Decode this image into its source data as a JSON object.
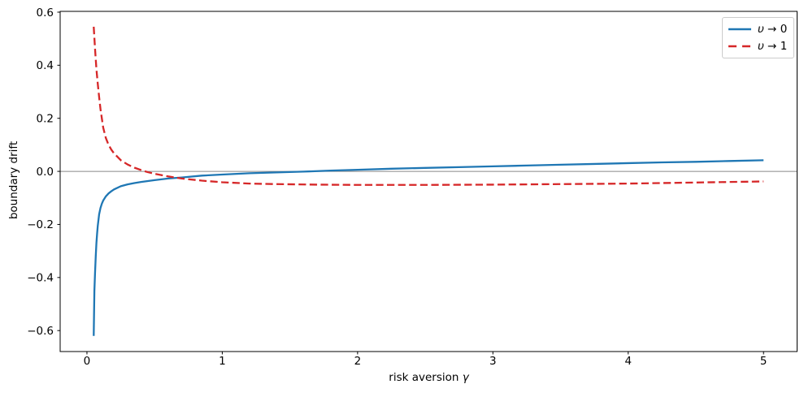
{
  "chart_data": {
    "type": "line",
    "title": "",
    "xlabel": "risk aversion γ",
    "ylabel": "boundary drift",
    "xlim": [
      -0.198,
      5.248
    ],
    "ylim": [
      -0.679,
      0.603
    ],
    "grid": false,
    "legend_position": "upper right",
    "background": "#ffffff",
    "spine_color": "#000000",
    "zero_line": {
      "y": 0.0,
      "color": "#888888"
    },
    "xticks": {
      "values": [
        0,
        1,
        2,
        3,
        4,
        5
      ],
      "labels": [
        "0",
        "1",
        "2",
        "3",
        "4",
        "5"
      ]
    },
    "yticks": {
      "values": [
        0.6,
        0.4,
        0.2,
        0.0,
        -0.2,
        -0.4,
        -0.6
      ],
      "labels": [
        "0.6",
        "0.4",
        "0.2",
        "0.0",
        "−0.2",
        "−0.4",
        "−0.6"
      ]
    },
    "series": [
      {
        "name": "υ → 0",
        "style": "solid",
        "color": "#1f77b4",
        "linewidth": 2.3,
        "x": [
          0.05,
          0.055,
          0.06,
          0.065,
          0.07,
          0.075,
          0.08,
          0.09,
          0.1,
          0.11,
          0.12,
          0.14,
          0.16,
          0.18,
          0.2,
          0.25,
          0.3,
          0.35,
          0.4,
          0.5,
          0.6,
          0.7,
          0.85,
          1.0,
          1.2,
          1.4,
          1.6,
          1.8,
          2.0,
          2.25,
          2.5,
          2.75,
          3.0,
          3.25,
          3.5,
          3.75,
          4.0,
          4.25,
          4.5,
          4.75,
          5.0
        ],
        "y": [
          -0.62,
          -0.45,
          -0.38,
          -0.32,
          -0.27,
          -0.235,
          -0.205,
          -0.162,
          -0.138,
          -0.122,
          -0.11,
          -0.094,
          -0.083,
          -0.075,
          -0.068,
          -0.056,
          -0.049,
          -0.044,
          -0.04,
          -0.033,
          -0.027,
          -0.023,
          -0.016,
          -0.012,
          -0.007,
          -0.004,
          -0.001,
          0.003,
          0.006,
          0.01,
          0.013,
          0.016,
          0.019,
          0.022,
          0.025,
          0.028,
          0.031,
          0.034,
          0.036,
          0.039,
          0.042
        ]
      },
      {
        "name": "υ → 1",
        "style": "dashed",
        "color": "#d62728",
        "linewidth": 2.3,
        "x": [
          0.05,
          0.06,
          0.07,
          0.08,
          0.09,
          0.1,
          0.12,
          0.14,
          0.16,
          0.18,
          0.2,
          0.25,
          0.3,
          0.35,
          0.4,
          0.45,
          0.5,
          0.6,
          0.7,
          0.85,
          1.0,
          1.2,
          1.4,
          1.7,
          2.0,
          2.5,
          3.0,
          3.5,
          4.0,
          4.5,
          5.0
        ],
        "y": [
          0.545,
          0.46,
          0.385,
          0.33,
          0.28,
          0.235,
          0.165,
          0.125,
          0.1,
          0.082,
          0.068,
          0.042,
          0.026,
          0.014,
          0.005,
          -0.003,
          -0.009,
          -0.019,
          -0.027,
          -0.035,
          -0.041,
          -0.046,
          -0.048,
          -0.05,
          -0.051,
          -0.051,
          -0.05,
          -0.048,
          -0.046,
          -0.042,
          -0.038
        ]
      }
    ]
  }
}
